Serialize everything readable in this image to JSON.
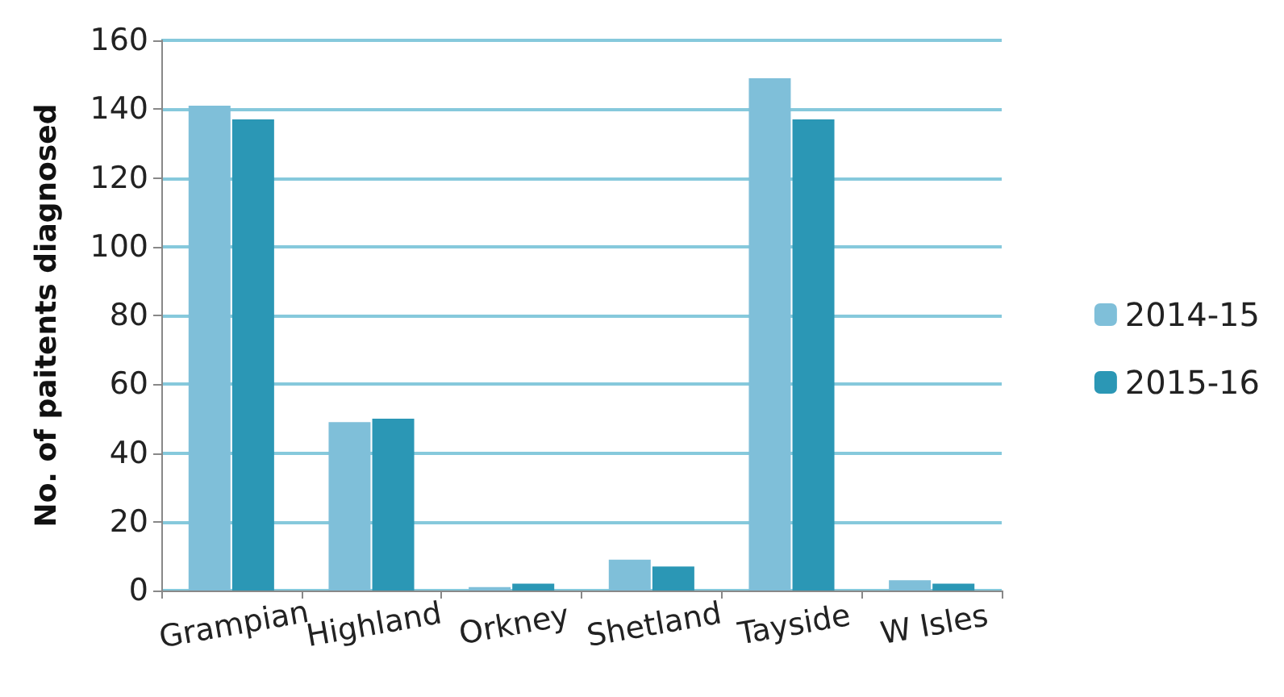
{
  "chart_data": {
    "type": "bar",
    "ylabel": "No. of paitents diagnosed",
    "categories": [
      "Grampian",
      "Highland",
      "Orkney",
      "Shetland",
      "Tayside",
      "W Isles"
    ],
    "series": [
      {
        "name": "2014-15",
        "color": "#7fbfd9",
        "values": [
          141,
          49,
          1,
          9,
          149,
          3
        ]
      },
      {
        "name": "2015-16",
        "color": "#2b97b5",
        "values": [
          137,
          50,
          2,
          7,
          137,
          2
        ]
      }
    ],
    "ylim": [
      0,
      160
    ],
    "yticks": [
      0,
      20,
      40,
      60,
      80,
      100,
      120,
      140,
      160
    ],
    "grid": "y",
    "legend": "right"
  }
}
